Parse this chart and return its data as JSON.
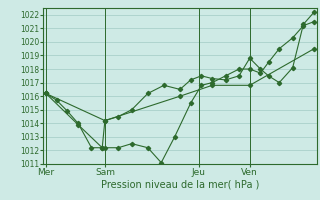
{
  "title": "Pression niveau de la mer( hPa )",
  "background_color": "#ceeae5",
  "grid_color": "#afd4ce",
  "line_color": "#2d6a2d",
  "ylim": [
    1011,
    1022.5
  ],
  "yticks": [
    1011,
    1012,
    1013,
    1014,
    1015,
    1016,
    1017,
    1018,
    1019,
    1020,
    1021,
    1022
  ],
  "day_labels": [
    "Mer",
    "Sam",
    "Jeu",
    "Ven"
  ],
  "day_positions": [
    0.0,
    0.22,
    0.57,
    0.76
  ],
  "series": [
    {
      "x": [
        0.0,
        0.04,
        0.08,
        0.12,
        0.17,
        0.21,
        0.22,
        0.27,
        0.32,
        0.38,
        0.44,
        0.5,
        0.54,
        0.58,
        0.62,
        0.67,
        0.72,
        0.76,
        0.8,
        0.83,
        0.87,
        0.92,
        0.96,
        1.0
      ],
      "y": [
        1016.2,
        1015.7,
        1014.9,
        1014.0,
        1012.2,
        1012.2,
        1014.2,
        1014.5,
        1015.0,
        1016.2,
        1016.8,
        1016.5,
        1017.2,
        1017.5,
        1017.3,
        1017.2,
        1017.5,
        1018.8,
        1018.0,
        1017.5,
        1017.0,
        1018.1,
        1021.3,
        1022.2
      ]
    },
    {
      "x": [
        0.0,
        0.12,
        0.21,
        0.22,
        0.27,
        0.32,
        0.38,
        0.43,
        0.48,
        0.54,
        0.58,
        0.62,
        0.67,
        0.72,
        0.76,
        0.8,
        0.83,
        0.87,
        0.92,
        0.96,
        1.0
      ],
      "y": [
        1016.2,
        1013.9,
        1012.2,
        1012.2,
        1012.2,
        1012.5,
        1012.2,
        1011.1,
        1013.0,
        1015.5,
        1016.8,
        1017.0,
        1017.5,
        1018.0,
        1018.0,
        1017.7,
        1018.5,
        1019.5,
        1020.3,
        1021.2,
        1021.5
      ]
    },
    {
      "x": [
        0.0,
        0.22,
        0.5,
        0.62,
        0.76,
        1.0
      ],
      "y": [
        1016.2,
        1014.2,
        1016.0,
        1016.8,
        1016.8,
        1019.5
      ]
    }
  ]
}
